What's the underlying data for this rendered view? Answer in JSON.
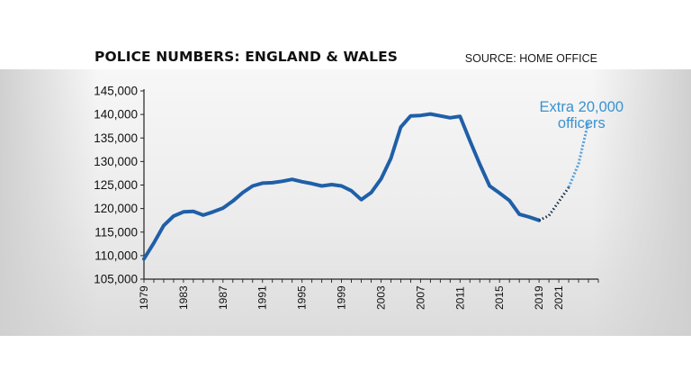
{
  "header": {
    "title": "POLICE NUMBERS: ENGLAND & WALES",
    "source": "SOURCE: HOME OFFICE"
  },
  "chart_data": {
    "type": "line",
    "title": "POLICE NUMBERS: ENGLAND & WALES",
    "xlabel": "",
    "ylabel": "",
    "xlim": [
      1979,
      2025
    ],
    "ylim": [
      105000,
      145000
    ],
    "x_ticks": [
      1979,
      1983,
      1987,
      1991,
      1995,
      1999,
      2003,
      2007,
      2011,
      2015,
      2019,
      2021
    ],
    "y_ticks": [
      105000,
      110000,
      115000,
      120000,
      125000,
      130000,
      135000,
      140000,
      145000
    ],
    "y_tick_labels": [
      "105,000",
      "110,000",
      "115,000",
      "120,000",
      "125,000",
      "130,000",
      "135,000",
      "140,000",
      "145,000"
    ],
    "grid": false,
    "series": [
      {
        "style": "solid",
        "color": "#1f5fa8",
        "x": [
          1979,
          1980,
          1981,
          1982,
          1983,
          1984,
          1985,
          1986,
          1987,
          1988,
          1989,
          1990,
          1991,
          1992,
          1993,
          1994,
          1995,
          1996,
          1997,
          1998,
          1999,
          2000,
          2001,
          2002,
          2003,
          2004,
          2005,
          2006,
          2007,
          2008,
          2009,
          2010,
          2011,
          2012,
          2013,
          2014,
          2015,
          2016,
          2017,
          2018,
          2019
        ],
        "values": [
          109300,
          112700,
          116400,
          118400,
          119300,
          119400,
          118600,
          119300,
          120100,
          121600,
          123400,
          124800,
          125400,
          125500,
          125800,
          126200,
          125700,
          125300,
          124800,
          125100,
          124800,
          123800,
          121900,
          123400,
          126300,
          130700,
          137300,
          139700,
          139800,
          140100,
          139700,
          139300,
          139600,
          134400,
          129400,
          124800,
          123300,
          121700,
          118800,
          118200,
          117500
        ]
      },
      {
        "style": "dotted",
        "color": "#1c2f4a",
        "x": [
          2019,
          2020,
          2021,
          2022
        ],
        "values": [
          117500,
          118500,
          121500,
          124500
        ]
      },
      {
        "style": "dashed",
        "color": "#5aa0d8",
        "x": [
          2022,
          2023,
          2024
        ],
        "values": [
          124500,
          129500,
          138500
        ]
      }
    ],
    "annotations": [
      {
        "text_lines": [
          "Extra 20,000",
          "officers"
        ],
        "color": "#3a92d0"
      }
    ]
  }
}
